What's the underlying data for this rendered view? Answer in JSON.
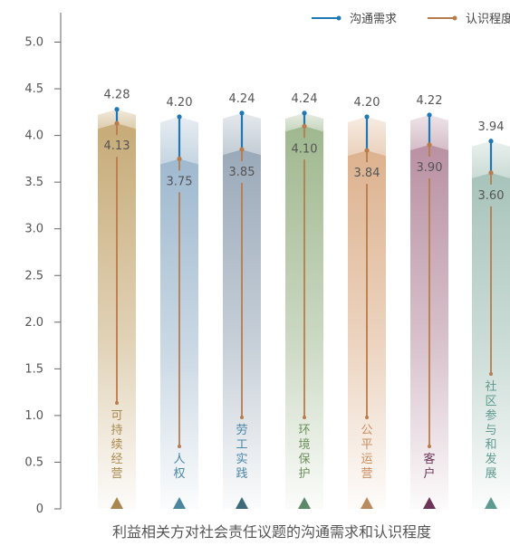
{
  "chart_data": {
    "type": "bar",
    "title": "利益相关方对社会责任议题的沟通需求和认识程度",
    "categories": [
      "可持续经营",
      "人权",
      "劳工实践",
      "环境保护",
      "公平运营",
      "客户",
      "社区参与和发展"
    ],
    "series": [
      {
        "name": "沟通需求",
        "values": [
          4.28,
          4.2,
          4.24,
          4.24,
          4.2,
          4.22,
          3.94
        ],
        "color": "#1f78b4"
      },
      {
        "name": "认识程度",
        "values": [
          4.13,
          3.75,
          3.85,
          4.1,
          3.84,
          3.9,
          3.6
        ],
        "color": "#b87c4c"
      }
    ],
    "value_labels": {
      "沟通需求": [
        "4.28",
        "4.20",
        "4.24",
        "4.24",
        "4.20",
        "4.22",
        "3.94"
      ],
      "认识程度": [
        "4.13",
        "3.75",
        "3.85",
        "4.10",
        "3.84",
        "3.90",
        "3.60"
      ]
    },
    "category_colors": [
      "#c7ab78",
      "#9fb9cf",
      "#9aa9b9",
      "#9fb88f",
      "#ddb28f",
      "#b991a3",
      "#a7c3ba"
    ],
    "marker_colors": [
      "#a9874f",
      "#4a86a0",
      "#3e6b7c",
      "#5b8a6a",
      "#b98b5e",
      "#6d3558",
      "#5f9a90"
    ],
    "label_colors": [
      "#a98a4f",
      "#4a86a8",
      "#4a86a8",
      "#6b8f5b",
      "#c98c5c",
      "#6d3558",
      "#5f9a90"
    ],
    "ylim": [
      0,
      5.0
    ],
    "yticks": [
      "0",
      "0.5",
      "1.0",
      "1.5",
      "2.0",
      "2.5",
      "3.0",
      "3.5",
      "4.0",
      "4.5",
      "5.0"
    ],
    "legend": {
      "position": "top-right"
    }
  }
}
